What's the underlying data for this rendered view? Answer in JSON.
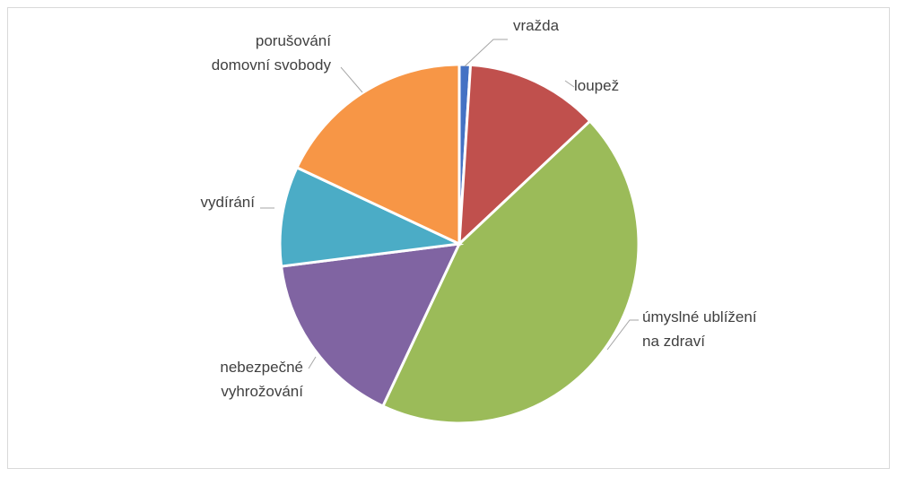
{
  "chart_data": {
    "type": "pie",
    "categories": [
      "vražda",
      "loupež",
      "úmyslné ublížení\nna zdraví",
      "nebezpečné\nvyhrožování",
      "vydírání",
      "porušování\ndomovní svobody"
    ],
    "values": [
      1,
      12,
      44,
      16,
      9,
      18
    ],
    "colors": [
      "#4472c4",
      "#c0504d",
      "#9bbb59",
      "#8064a2",
      "#4bacc6",
      "#f79646"
    ]
  }
}
